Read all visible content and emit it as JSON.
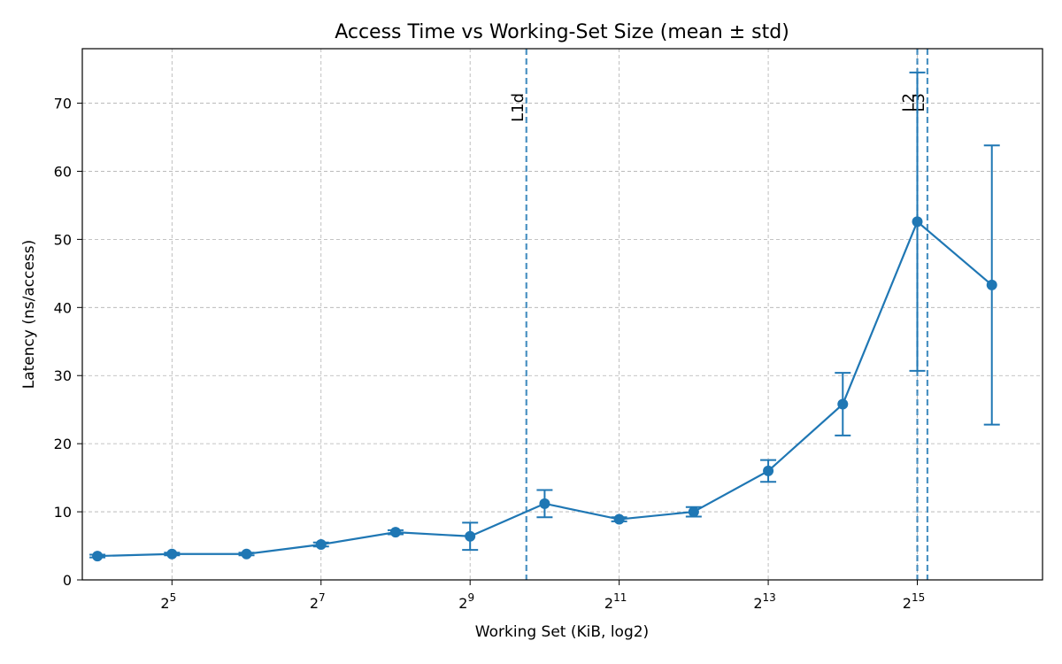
{
  "chart_data": {
    "type": "line",
    "title": "Access Time vs Working-Set Size (mean ± std)",
    "xlabel": "Working Set (KiB, log2)",
    "ylabel": "Latency (ns/access)",
    "x_scale": "log2",
    "xlim": [
      13.9,
      105000
    ],
    "ylim": [
      0,
      78
    ],
    "x_ticks": [
      {
        "value": 32,
        "base": "2",
        "exp": "5"
      },
      {
        "value": 128,
        "base": "2",
        "exp": "7"
      },
      {
        "value": 512,
        "base": "2",
        "exp": "9"
      },
      {
        "value": 2048,
        "base": "2",
        "exp": "11"
      },
      {
        "value": 8192,
        "base": "2",
        "exp": "13"
      },
      {
        "value": 32768,
        "base": "2",
        "exp": "15"
      }
    ],
    "y_ticks": [
      {
        "value": 0,
        "label": "0"
      },
      {
        "value": 10,
        "label": "10"
      },
      {
        "value": 20,
        "label": "20"
      },
      {
        "value": 30,
        "label": "30"
      },
      {
        "value": 40,
        "label": "40"
      },
      {
        "value": 50,
        "label": "50"
      },
      {
        "value": 60,
        "label": "60"
      },
      {
        "value": 70,
        "label": "70"
      }
    ],
    "grid": true,
    "series": [
      {
        "color": "#1f77b4",
        "points": [
          {
            "x": 16,
            "y": 3.5,
            "err": 0.2
          },
          {
            "x": 32,
            "y": 3.8,
            "err": 0.2
          },
          {
            "x": 64,
            "y": 3.8,
            "err": 0.2
          },
          {
            "x": 128,
            "y": 5.2,
            "err": 0.3
          },
          {
            "x": 256,
            "y": 7.0,
            "err": 0.3
          },
          {
            "x": 512,
            "y": 6.4,
            "err": 2.0
          },
          {
            "x": 1024,
            "y": 11.2,
            "err": 2.0
          },
          {
            "x": 2048,
            "y": 8.9,
            "err": 0.3
          },
          {
            "x": 4096,
            "y": 10.0,
            "err": 0.7
          },
          {
            "x": 8192,
            "y": 16.0,
            "err": 1.6
          },
          {
            "x": 16384,
            "y": 25.8,
            "err": 4.6
          },
          {
            "x": 32768,
            "y": 52.6,
            "err": 21.9
          },
          {
            "x": 65536,
            "y": 43.3,
            "err": 20.5
          }
        ]
      }
    ],
    "vlines": [
      {
        "label": "L1d",
        "x": 864,
        "color": "#1f77b4"
      },
      {
        "label": "L2",
        "x": 32768,
        "color": "#1f77b4"
      },
      {
        "label": "L3",
        "x": 36000,
        "color": "#1f77b4"
      }
    ]
  }
}
